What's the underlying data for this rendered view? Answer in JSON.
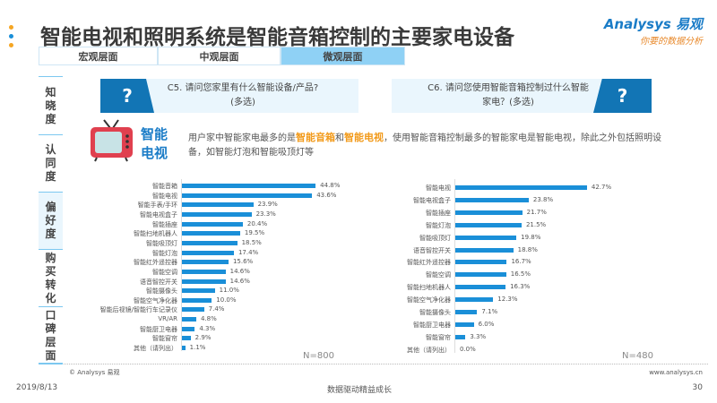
{
  "header": {
    "title": "智能电视和照明系统是智能音箱控制的主要家电设备",
    "logo_brand": "Analysys 易观",
    "logo_slogan": "你要的数据分析"
  },
  "tabs": [
    {
      "label": "宏观层面",
      "active": false
    },
    {
      "label": "中观层面",
      "active": false
    },
    {
      "label": "微观层面",
      "active": true
    }
  ],
  "sidebar": [
    {
      "label": "知晓度"
    },
    {
      "label": "认同度"
    },
    {
      "label": "偏好度",
      "active": true
    },
    {
      "label": "购买转化"
    },
    {
      "label": "口碑层面"
    }
  ],
  "questions": {
    "c5": "C5. 请问您家里有什么智能设备/产品?(多选)",
    "c6": "C6. 请问您使用智能音箱控制过什么智能家电？(多选)",
    "mark": "?"
  },
  "insight": {
    "icon_label": "智能电视",
    "text_1": "用户家中智能家电最多的是",
    "hl_1": "智能音箱",
    "text_2": "和",
    "hl_2": "智能电视",
    "text_3": "，使用智能音箱控制最多的智能家电是智能电视，除此之外包括照明设备，如智能灯泡和智能吸顶灯等"
  },
  "chart_data": [
    {
      "type": "bar",
      "orientation": "horizontal",
      "title": "C5",
      "n_label": "N=800",
      "categories": [
        "智能音箱",
        "智能电视",
        "智能手表/手环",
        "智能电视盒子",
        "智能插座",
        "智能扫地机器人",
        "智能吸顶灯",
        "智能灯泡",
        "智能红外遥控器",
        "智能空调",
        "语音智控开关",
        "智能摄像头",
        "智能空气净化器",
        "智能后视镜/智能行车记录仪",
        "VR/AR",
        "智能厨卫电器",
        "智能窗帘",
        "其他（请列出）"
      ],
      "values": [
        44.8,
        43.6,
        23.9,
        23.3,
        20.4,
        19.5,
        18.5,
        17.4,
        15.6,
        14.6,
        14.6,
        11.0,
        10.0,
        7.4,
        4.8,
        4.3,
        2.9,
        1.1
      ],
      "labels": [
        "44.8%",
        "43.6%",
        "23.9%",
        "23.3%",
        "20.4%",
        "19.5%",
        "18.5%",
        "17.4%",
        "15.6%",
        "14.6%",
        "14.6%",
        "11.0%",
        "10.0%",
        "7.4%",
        "4.8%",
        "4.3%",
        "2.9%",
        "1.1%"
      ],
      "unit": "%"
    },
    {
      "type": "bar",
      "orientation": "horizontal",
      "title": "C6",
      "n_label": "N=480",
      "categories": [
        "智能电视",
        "智能电视盒子",
        "智能插座",
        "智能灯泡",
        "智能吸顶灯",
        "语音智控开关",
        "智能红外遥控器",
        "智能空调",
        "智能扫地机器人",
        "智能空气净化器",
        "智能摄像头",
        "智能厨卫电器",
        "智能窗帘",
        "其他（请列出）"
      ],
      "values": [
        42.7,
        23.8,
        21.7,
        21.5,
        19.8,
        18.8,
        16.7,
        16.5,
        16.3,
        12.3,
        7.1,
        6.0,
        3.3,
        0.0
      ],
      "labels": [
        "42.7%",
        "23.8%",
        "21.7%",
        "21.5%",
        "19.8%",
        "18.8%",
        "16.7%",
        "16.5%",
        "16.3%",
        "12.3%",
        "7.1%",
        "6.0%",
        "3.3%",
        "0.0%"
      ],
      "unit": "%"
    }
  ],
  "footer": {
    "copyright": "© Analysys 易观",
    "website": "www.analysys.cn",
    "date": "2019/8/13",
    "slogan": "数据驱动精益成长",
    "page": "30"
  },
  "colors": {
    "accent": "#1a8fd8",
    "dark_blue": "#1275b5",
    "highlight": "#f29a1a",
    "tab_active": "#8fd1f5"
  }
}
